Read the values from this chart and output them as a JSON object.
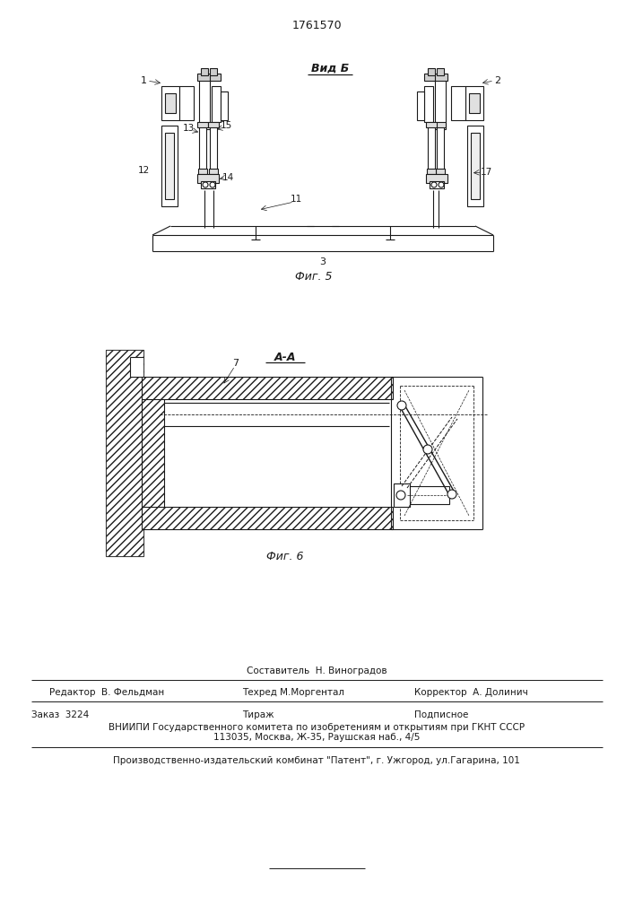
{
  "patent_number": "1761570",
  "fig5_caption": "Фиг. 5",
  "fig6_caption": "Фиг. 6",
  "background": "#ffffff",
  "line_color": "#1a1a1a",
  "footer_line1_top": "Составитель  Н. Виноградов",
  "footer_line1_left": "Редактор  В. Фельдман",
  "footer_line1_mid": "Техред М.Моргентал",
  "footer_line1_right": "Корректор  А. Долинич",
  "footer_line2_left": "Заказ  3224",
  "footer_line2_mid": "Тираж",
  "footer_line2_right": "Подписное",
  "footer_line3": "ВНИИПИ Государственного комитета по изобретениям и открытиям при ГКНТ СССР",
  "footer_line4": "113035, Москва, Ж-35, Раушская наб., 4/5",
  "footer_line5": "Производственно-издательский комбинат \"Патент\", г. Ужгород, ул.Гагарина, 101"
}
